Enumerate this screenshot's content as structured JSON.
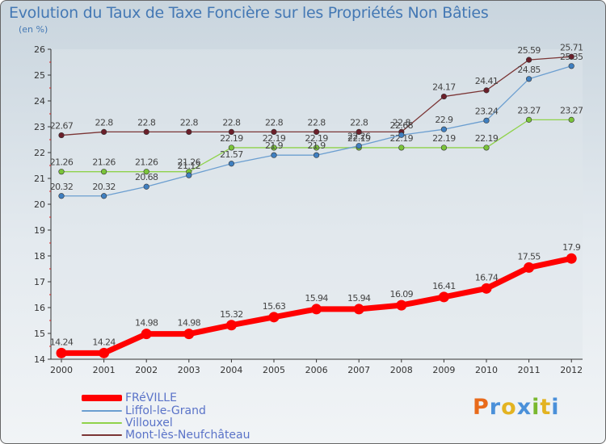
{
  "title": "Evolution du Taux de Taxe Foncière sur les Propriétés Non Bâties",
  "subtitle": "(en %)",
  "brand": {
    "text": "Proxiti",
    "colors": [
      "#e86a1a",
      "#4a90d9",
      "#e3b321",
      "#4a90d9",
      "#7ab82f",
      "#e3b321",
      "#4a90d9"
    ]
  },
  "legend": [
    {
      "label": "FRéVILLE",
      "color": "#ff0000",
      "thick": true
    },
    {
      "label": "Liffol-le-Grand",
      "color": "#6b9ed0",
      "thick": false
    },
    {
      "label": "Villouxel",
      "color": "#8fd24a",
      "thick": false
    },
    {
      "label": "Mont-lès-Neufchâteau",
      "color": "#7b3535",
      "thick": false
    }
  ],
  "chart_data": {
    "type": "line",
    "title": "Evolution du Taux de Taxe Foncière sur les Propriétés Non Bâties",
    "ylabel": "(en %)",
    "ylim": [
      14,
      26
    ],
    "yticks": [
      14,
      15,
      16,
      17,
      18,
      19,
      20,
      21,
      22,
      23,
      24,
      25,
      26
    ],
    "grid": false,
    "legend_position": "bottom-left",
    "x": [
      "2000",
      "2001",
      "2002",
      "2003",
      "2004",
      "2005",
      "2006",
      "2007",
      "2008",
      "2009",
      "2010",
      "2011",
      "2012"
    ],
    "series": [
      {
        "name": "Mont-lès-Neufchâteau",
        "color": "#7b3535",
        "marker": "#6b1f2a",
        "values": [
          22.67,
          22.8,
          22.8,
          22.8,
          22.8,
          22.8,
          22.8,
          22.8,
          22.8,
          24.17,
          24.41,
          25.59,
          25.71
        ]
      },
      {
        "name": "Villouxel",
        "color": "#8fd24a",
        "marker": "#7ac43a",
        "values": [
          21.26,
          21.26,
          21.26,
          21.26,
          22.19,
          22.19,
          22.19,
          22.19,
          22.19,
          22.19,
          22.19,
          23.27,
          23.27
        ]
      },
      {
        "name": "Liffol-le-Grand",
        "color": "#6b9ed0",
        "marker": "#3f7fc0",
        "values": [
          20.32,
          20.32,
          20.68,
          21.12,
          21.57,
          21.9,
          21.9,
          22.26,
          22.68,
          22.9,
          23.24,
          24.85,
          25.35
        ]
      },
      {
        "name": "FRéVILLE",
        "color": "#ff0000",
        "marker": "#ff0000",
        "values": [
          14.24,
          14.24,
          14.98,
          14.98,
          15.32,
          15.63,
          15.94,
          15.94,
          16.09,
          16.41,
          16.74,
          17.55,
          17.9
        ]
      }
    ]
  }
}
